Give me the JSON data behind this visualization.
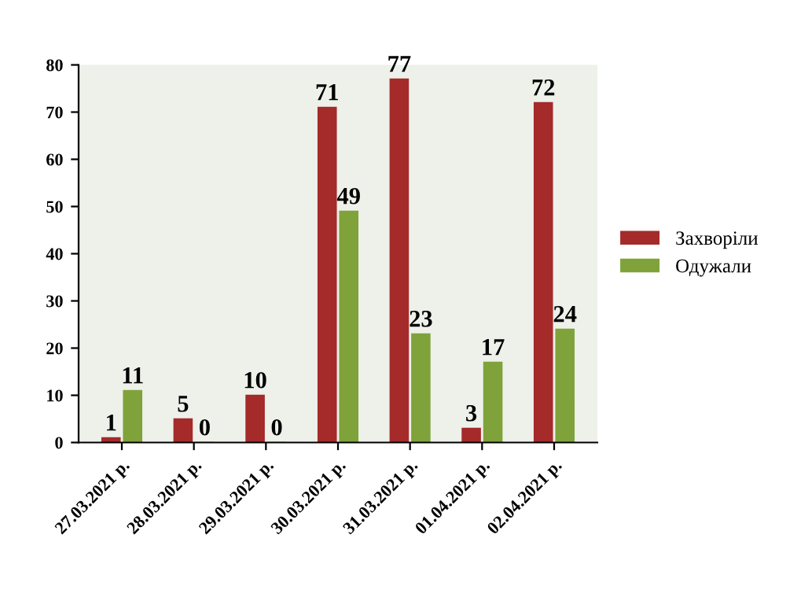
{
  "chart_data": {
    "type": "bar",
    "categories": [
      "27.03.2021 р.",
      "28.03.2021 р.",
      "29.03.2021 р.",
      "30.03.2021 р.",
      "31.03.2021 р.",
      "01.04.2021 р.",
      "02.04.2021 р."
    ],
    "series": [
      {
        "name": "Захворіли",
        "color": "#a52a2a",
        "values": [
          1,
          5,
          10,
          71,
          77,
          3,
          72
        ]
      },
      {
        "name": "Одужали",
        "color": "#7fa33a",
        "values": [
          11,
          0,
          0,
          49,
          23,
          17,
          24
        ]
      }
    ],
    "ylim": [
      0,
      80
    ],
    "yticks": [
      0,
      10,
      20,
      30,
      40,
      50,
      60,
      70,
      80
    ],
    "data_labels": true,
    "legend": "right",
    "grid": false
  }
}
